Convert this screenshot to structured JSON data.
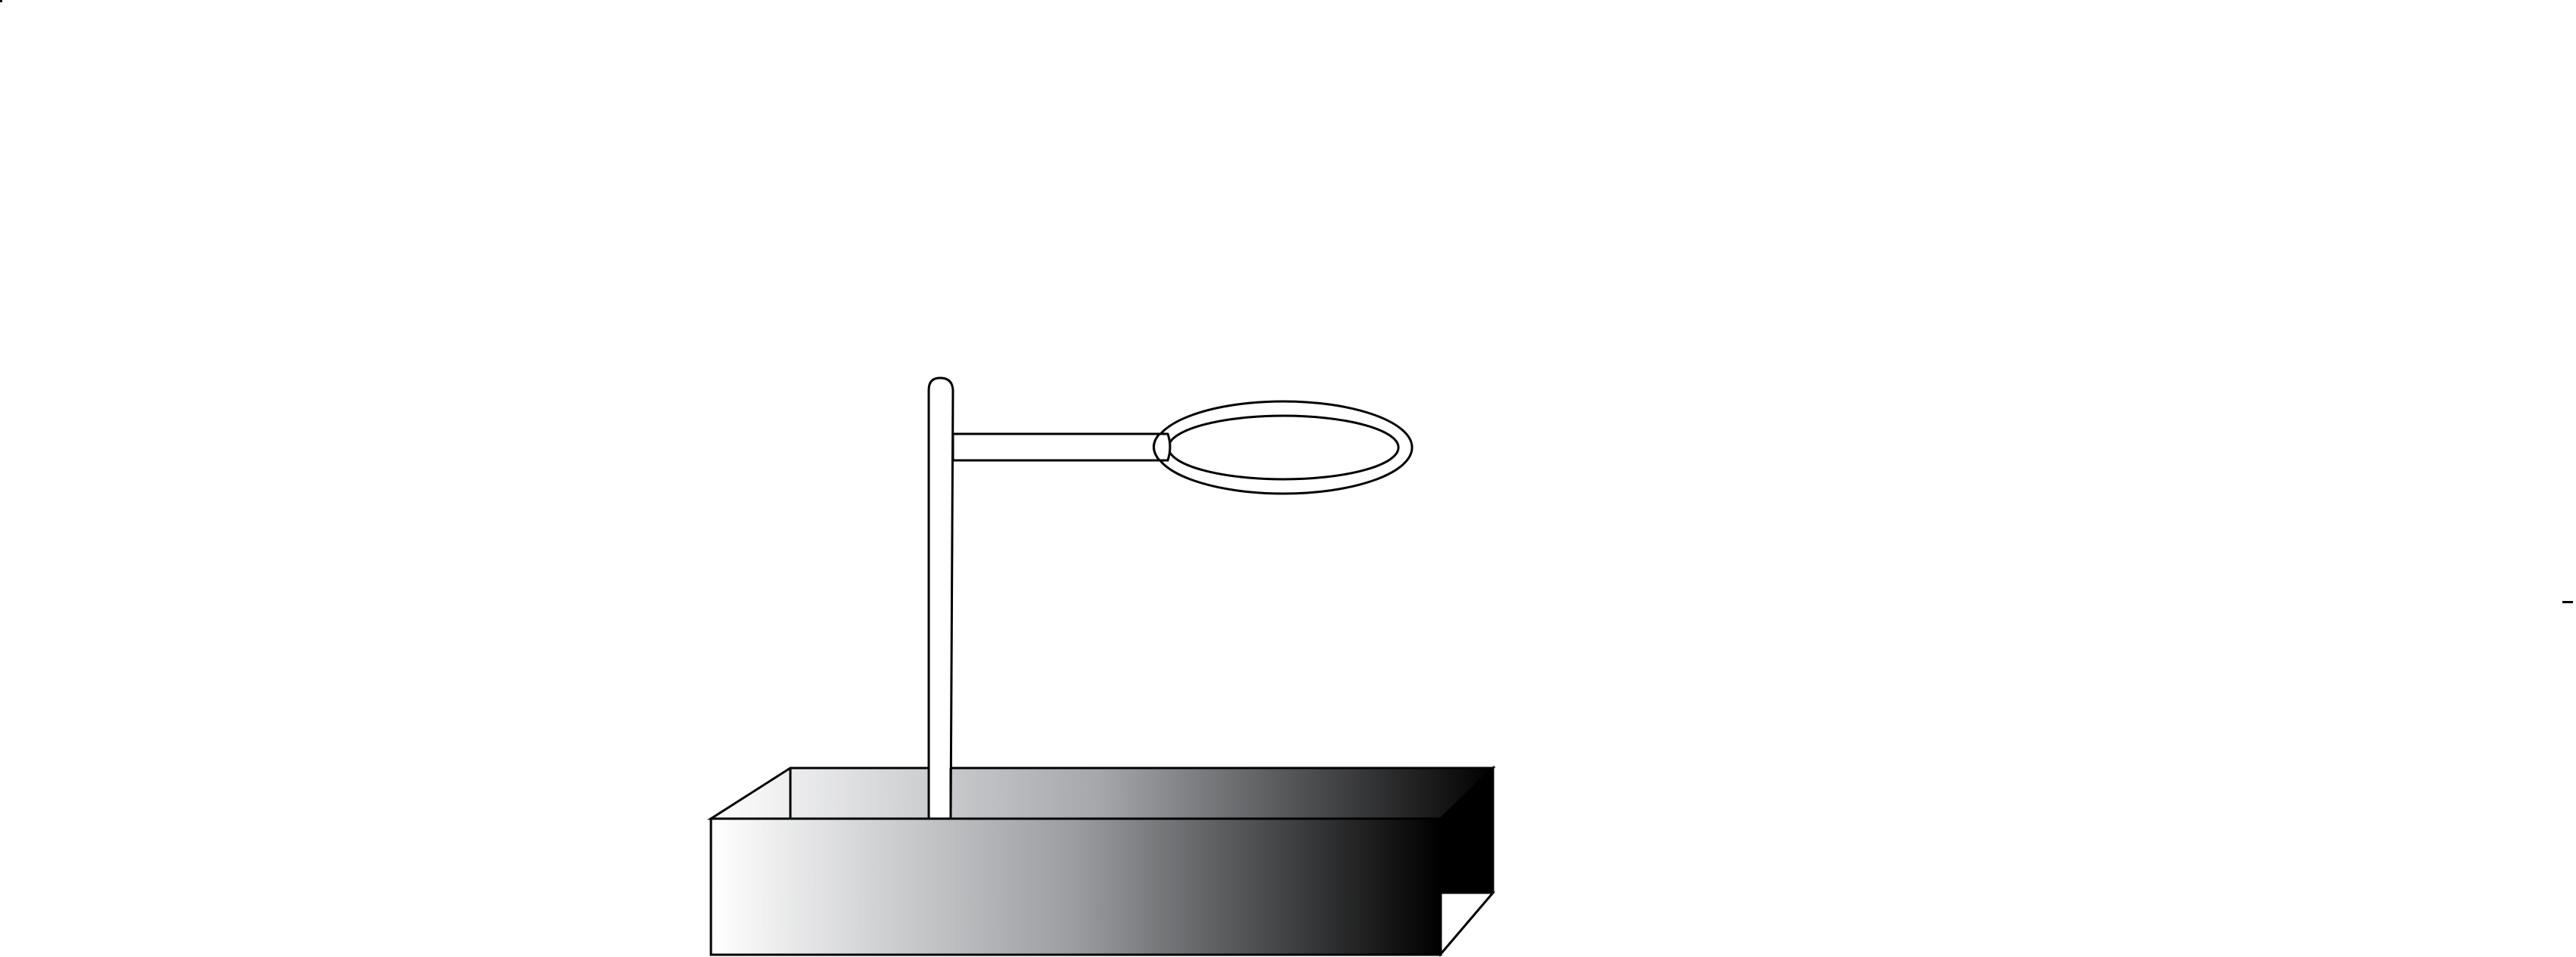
{
  "diagram": {
    "colors": {
      "stroke": "#000000",
      "fill": "#ffffff",
      "gradient_start": "#ffffff",
      "gradient_mid": "#9a9ca0",
      "gradient_end": "#000000",
      "side_face": "#000000"
    },
    "parts": [
      "ring-stand-base",
      "ring-stand-rod",
      "ring-clamp-arm",
      "support-ring"
    ]
  }
}
